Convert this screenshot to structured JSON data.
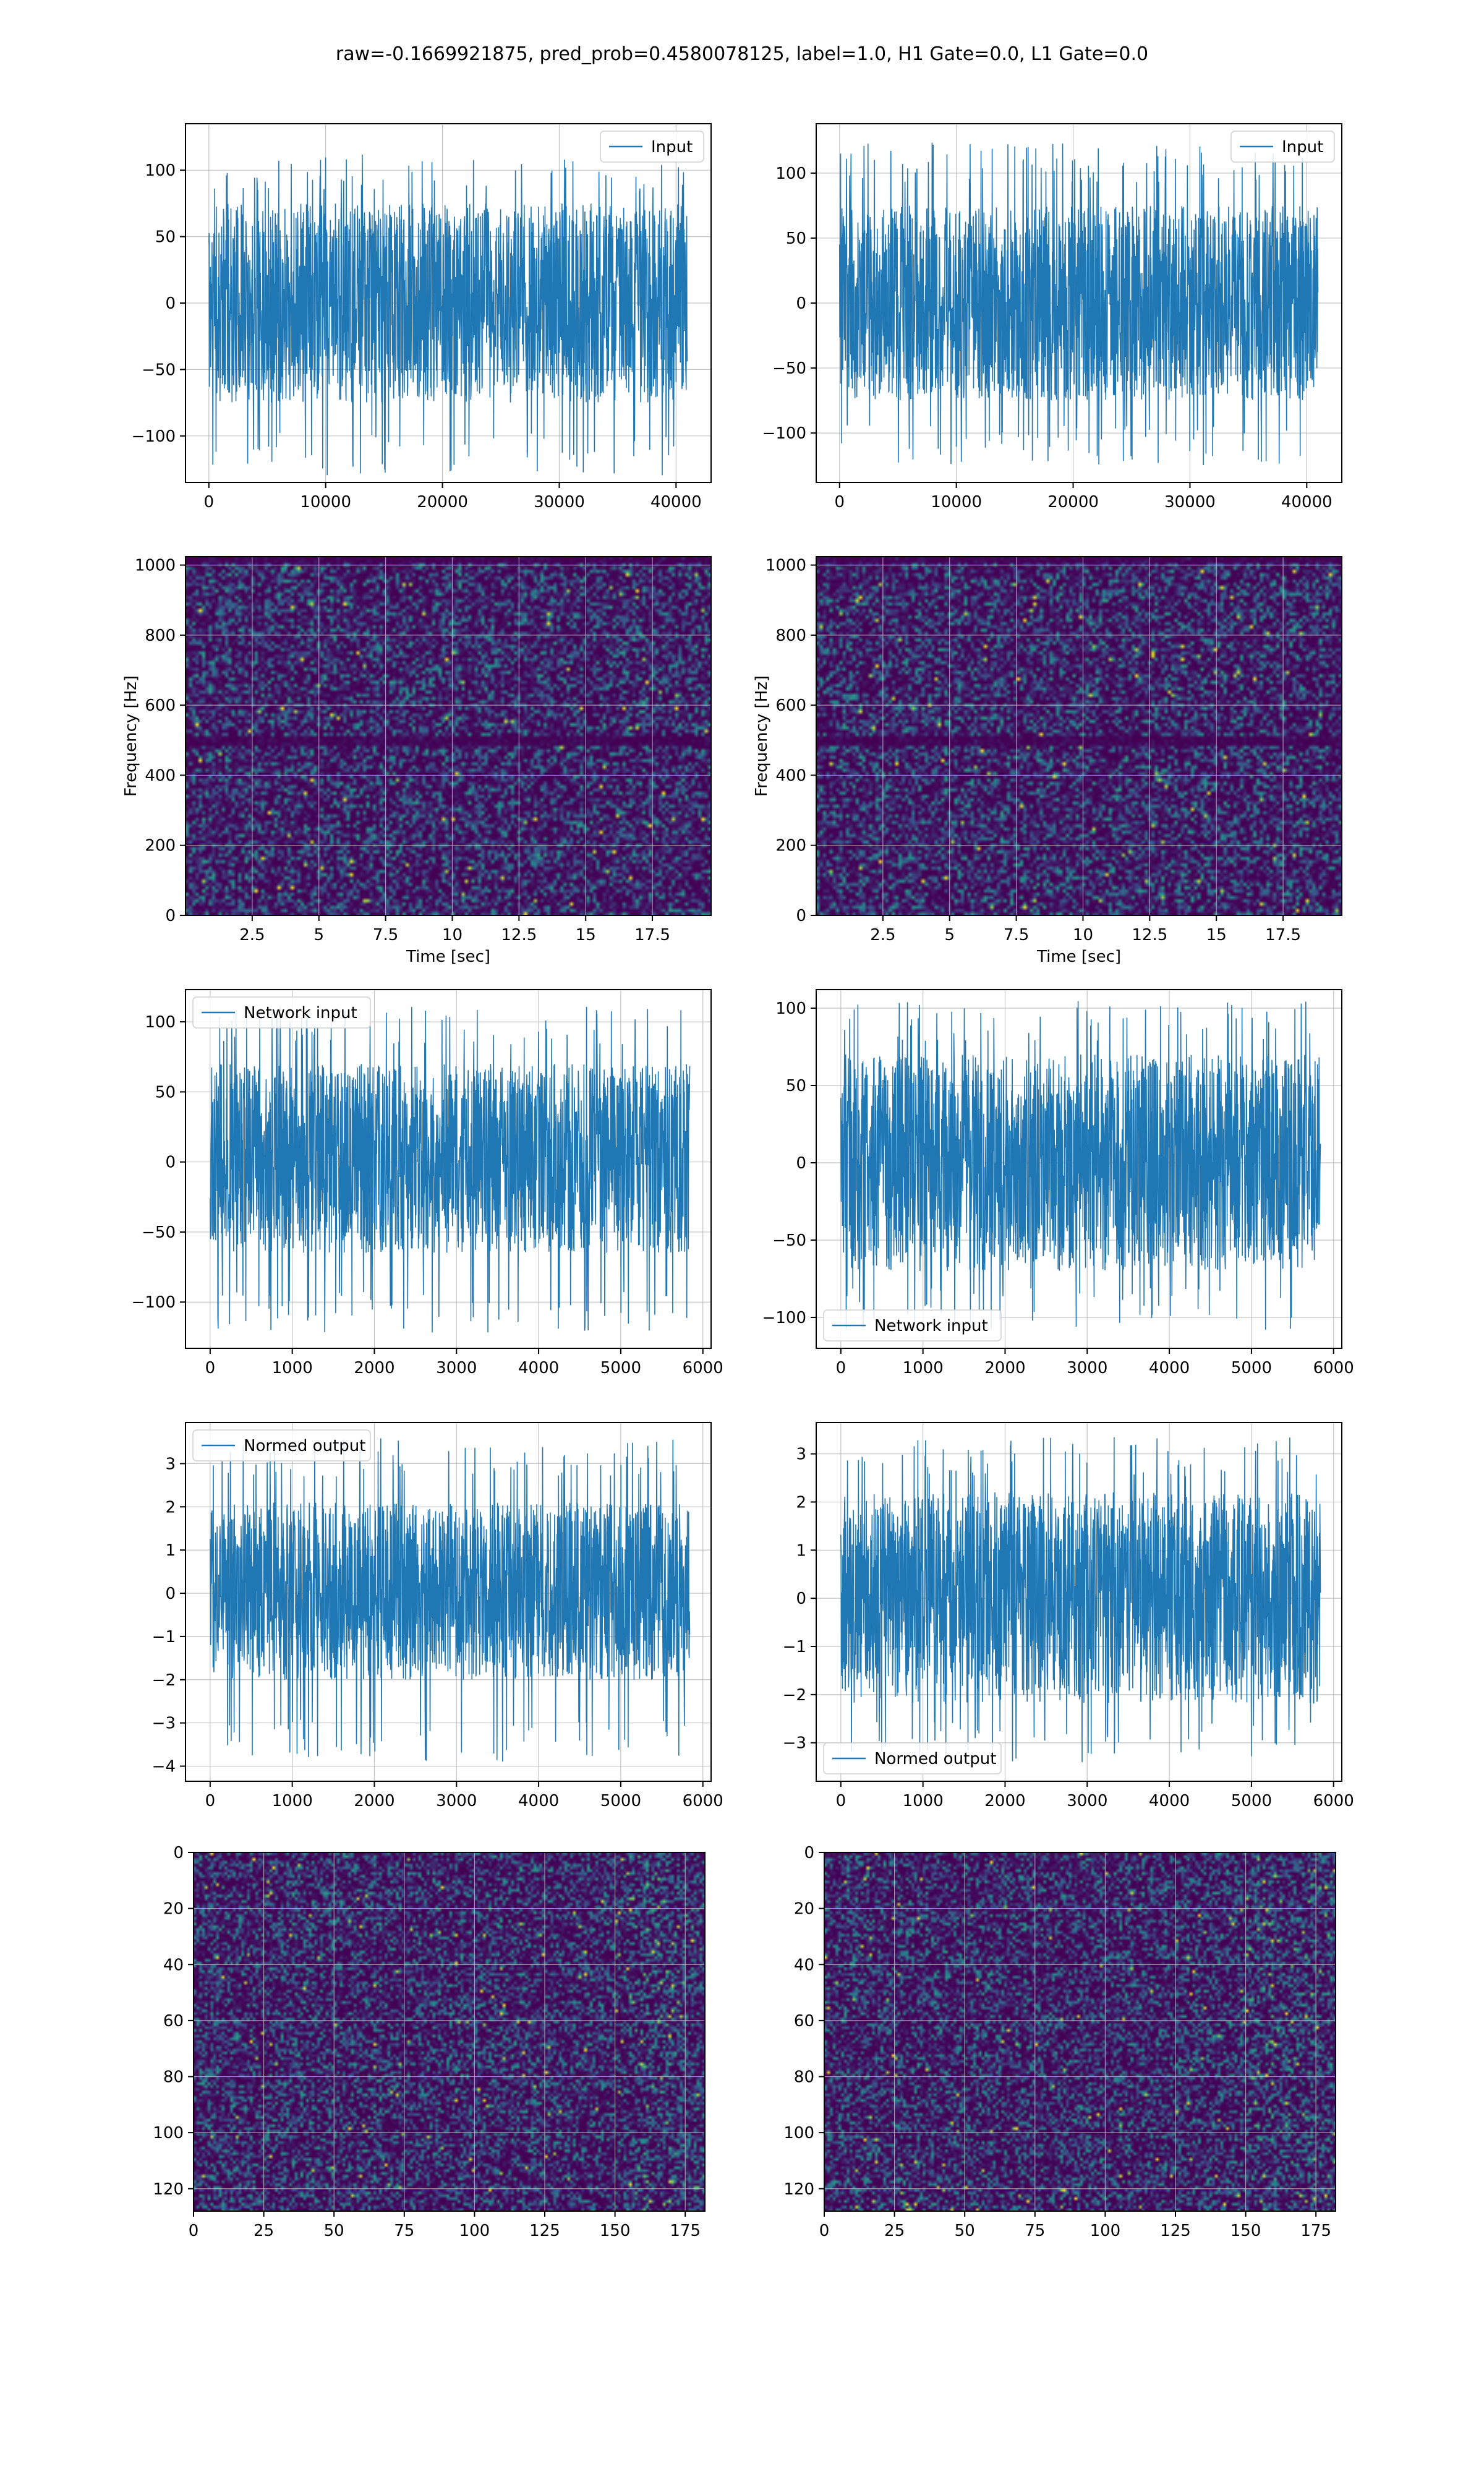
{
  "title": "raw=-0.1669921875, pred_prob=0.4580078125, label=1.0, H1 Gate=0.0, L1 Gate=0.0",
  "colors": {
    "line": "#1f77b4",
    "grid": "#b0b0b0",
    "viridis_dark": "#440154",
    "viridis_mid": "#21918c",
    "viridis_bright": "#fde725"
  },
  "chart_data": [
    {
      "id": "input-left",
      "type": "line",
      "legend": "Input",
      "legend_loc": "upper right",
      "xlim": [
        -2000,
        43000
      ],
      "ylim": [
        -135,
        135
      ],
      "grid": true,
      "xticks": [
        0,
        10000,
        20000,
        30000,
        40000
      ],
      "yticks": [
        -100,
        -50,
        0,
        50,
        100
      ],
      "x_range": [
        0,
        40960
      ],
      "band": [
        -75,
        75
      ],
      "peak": [
        -130,
        112
      ],
      "seed": 11
    },
    {
      "id": "input-right",
      "type": "line",
      "legend": "Input",
      "legend_loc": "upper right",
      "xlim": [
        -2000,
        43000
      ],
      "ylim": [
        -138,
        138
      ],
      "grid": true,
      "xticks": [
        0,
        10000,
        20000,
        30000,
        40000
      ],
      "yticks": [
        -100,
        -50,
        0,
        50,
        100
      ],
      "x_range": [
        0,
        40960
      ],
      "band": [
        -75,
        75
      ],
      "peak": [
        -125,
        124
      ],
      "seed": 23
    },
    {
      "id": "spec-left",
      "type": "heatmap",
      "xlabel": "Time [sec]",
      "ylabel": "Frequency [Hz]",
      "xlim": [
        0,
        19.7
      ],
      "ylim": [
        0,
        1024
      ],
      "grid": true,
      "xticks": [
        2.5,
        5.0,
        7.5,
        10.0,
        12.5,
        15.0,
        17.5
      ],
      "yticks": [
        0,
        200,
        400,
        600,
        800,
        1000
      ],
      "cols": 160,
      "rows": 110,
      "dark_rows_hz": [
        500,
        1020
      ],
      "seed": 37
    },
    {
      "id": "spec-right",
      "type": "heatmap",
      "xlabel": "Time [sec]",
      "ylabel": "Frequency [Hz]",
      "xlim": [
        0,
        19.7
      ],
      "ylim": [
        0,
        1024
      ],
      "grid": true,
      "xticks": [
        2.5,
        5.0,
        7.5,
        10.0,
        12.5,
        15.0,
        17.5
      ],
      "yticks": [
        0,
        200,
        400,
        600,
        800,
        1000
      ],
      "cols": 160,
      "rows": 110,
      "dark_rows_hz": [
        500,
        1020
      ],
      "seed": 41
    },
    {
      "id": "net-left",
      "type": "line",
      "legend": "Network input",
      "legend_loc": "upper left",
      "xlim": [
        -300,
        6100
      ],
      "ylim": [
        -133,
        123
      ],
      "grid": true,
      "xticks": [
        0,
        1000,
        2000,
        3000,
        4000,
        5000,
        6000
      ],
      "yticks": [
        -100,
        -50,
        0,
        50,
        100
      ],
      "x_range": [
        0,
        5840
      ],
      "band": [
        -65,
        70
      ],
      "peak": [
        -122,
        112
      ],
      "seed": 53
    },
    {
      "id": "net-right",
      "type": "line",
      "legend": "Network input",
      "legend_loc": "lower left",
      "xlim": [
        -300,
        6100
      ],
      "ylim": [
        -120,
        112
      ],
      "grid": true,
      "xticks": [
        0,
        1000,
        2000,
        3000,
        4000,
        5000,
        6000
      ],
      "yticks": [
        -100,
        -50,
        0,
        50,
        100
      ],
      "x_range": [
        0,
        5840
      ],
      "band": [
        -70,
        70
      ],
      "peak": [
        -108,
        105
      ],
      "seed": 67
    },
    {
      "id": "norm-left",
      "type": "line",
      "legend": "Normed output",
      "legend_loc": "upper left",
      "xlim": [
        -300,
        6100
      ],
      "ylim": [
        -4.35,
        3.95
      ],
      "grid": true,
      "xticks": [
        0,
        1000,
        2000,
        3000,
        4000,
        5000,
        6000
      ],
      "yticks": [
        -4,
        -3,
        -2,
        -1,
        0,
        1,
        2,
        3
      ],
      "x_range": [
        0,
        5840
      ],
      "band": [
        -2.0,
        2.1
      ],
      "peak": [
        -3.9,
        3.6
      ],
      "seed": 71
    },
    {
      "id": "norm-right",
      "type": "line",
      "legend": "Normed output",
      "legend_loc": "lower left",
      "xlim": [
        -300,
        6100
      ],
      "ylim": [
        -3.8,
        3.65
      ],
      "grid": true,
      "xticks": [
        0,
        1000,
        2000,
        3000,
        4000,
        5000,
        6000
      ],
      "yticks": [
        -3,
        -2,
        -1,
        0,
        1,
        2,
        3
      ],
      "x_range": [
        0,
        5840
      ],
      "band": [
        -2.2,
        2.2
      ],
      "peak": [
        -3.4,
        3.35
      ],
      "seed": 83
    },
    {
      "id": "act-left",
      "type": "heatmap",
      "xlim": [
        0,
        182
      ],
      "ylim": [
        128,
        0
      ],
      "grid": true,
      "xticks": [
        0,
        25,
        50,
        75,
        100,
        125,
        150,
        175
      ],
      "yticks": [
        0,
        20,
        40,
        60,
        80,
        100,
        120
      ],
      "cols": 182,
      "rows": 128,
      "hot_from_col": 155,
      "seed": 97
    },
    {
      "id": "act-right",
      "type": "heatmap",
      "xlim": [
        0,
        182
      ],
      "ylim": [
        128,
        0
      ],
      "grid": true,
      "xticks": [
        0,
        25,
        50,
        75,
        100,
        125,
        150,
        175
      ],
      "yticks": [
        0,
        20,
        40,
        60,
        80,
        100,
        120
      ],
      "cols": 182,
      "rows": 128,
      "hot_from_col": 150,
      "seed": 101
    }
  ]
}
